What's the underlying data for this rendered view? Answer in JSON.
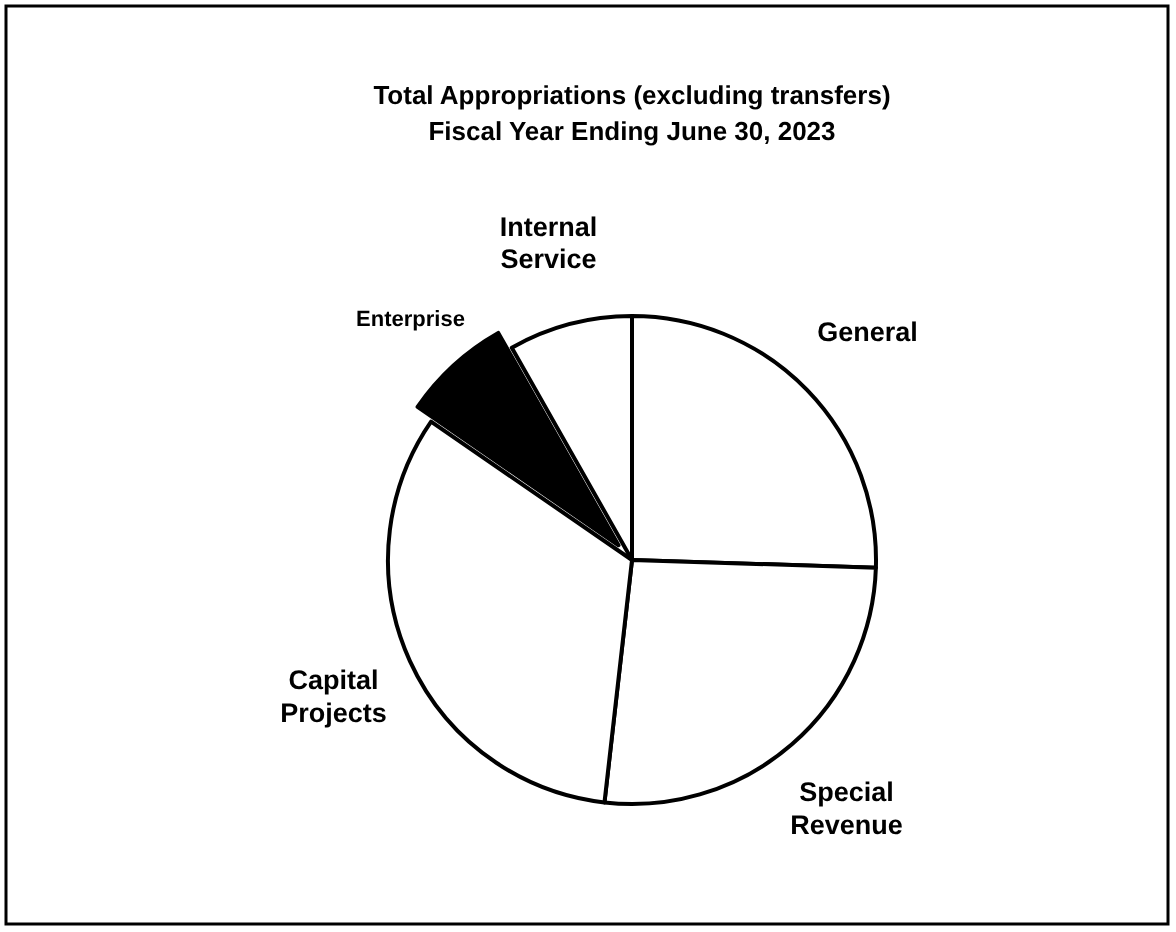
{
  "chart_data": {
    "type": "pie",
    "title": "Total Appropriations (excluding transfers)",
    "subtitle": "Fiscal Year Ending June 30, 2023",
    "categories": [
      "General",
      "Special Revenue",
      "Capital Projects",
      "Enterprise",
      "Internal Service"
    ],
    "values": [
      25.5,
      26.3,
      32.8,
      7.2,
      8.2
    ],
    "colors": [
      "#ffffff",
      "#ffffff",
      "#ffffff",
      "#000000",
      "#ffffff"
    ]
  }
}
